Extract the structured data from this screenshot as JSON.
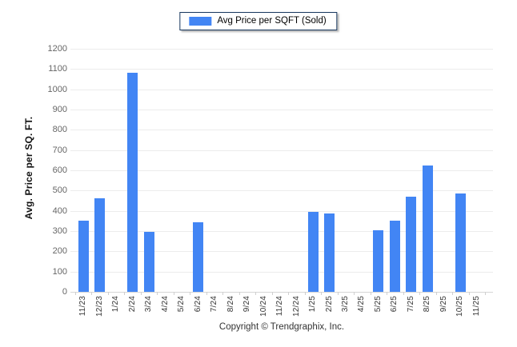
{
  "legend": {
    "label": "Avg Price per SQFT (Sold)",
    "swatch_color": "#4285f4"
  },
  "chart_data": {
    "type": "bar",
    "title": "",
    "xlabel": "",
    "ylabel": "Avg. Price per SQ. FT.",
    "ylim": [
      0,
      1200
    ],
    "ytick_step": 100,
    "grid": true,
    "legend_position": "top-center",
    "series_name": "Avg Price per SQFT (Sold)",
    "bar_color": "#4285f4",
    "categories": [
      "11/23",
      "12/23",
      "1/24",
      "2/24",
      "3/24",
      "4/24",
      "5/24",
      "6/24",
      "7/24",
      "8/24",
      "9/24",
      "10/24",
      "11/24",
      "12/24",
      "1/25",
      "2/25",
      "3/25",
      "4/25",
      "5/25",
      "6/25",
      "7/25",
      "8/25",
      "9/25",
      "10/25",
      "11/25"
    ],
    "values": [
      350,
      460,
      0,
      1080,
      295,
      0,
      0,
      345,
      0,
      0,
      0,
      0,
      0,
      0,
      395,
      385,
      0,
      0,
      305,
      350,
      470,
      625,
      0,
      485,
      0
    ]
  },
  "footer": {
    "copyright": "Copyright © Trendgraphix, Inc."
  }
}
